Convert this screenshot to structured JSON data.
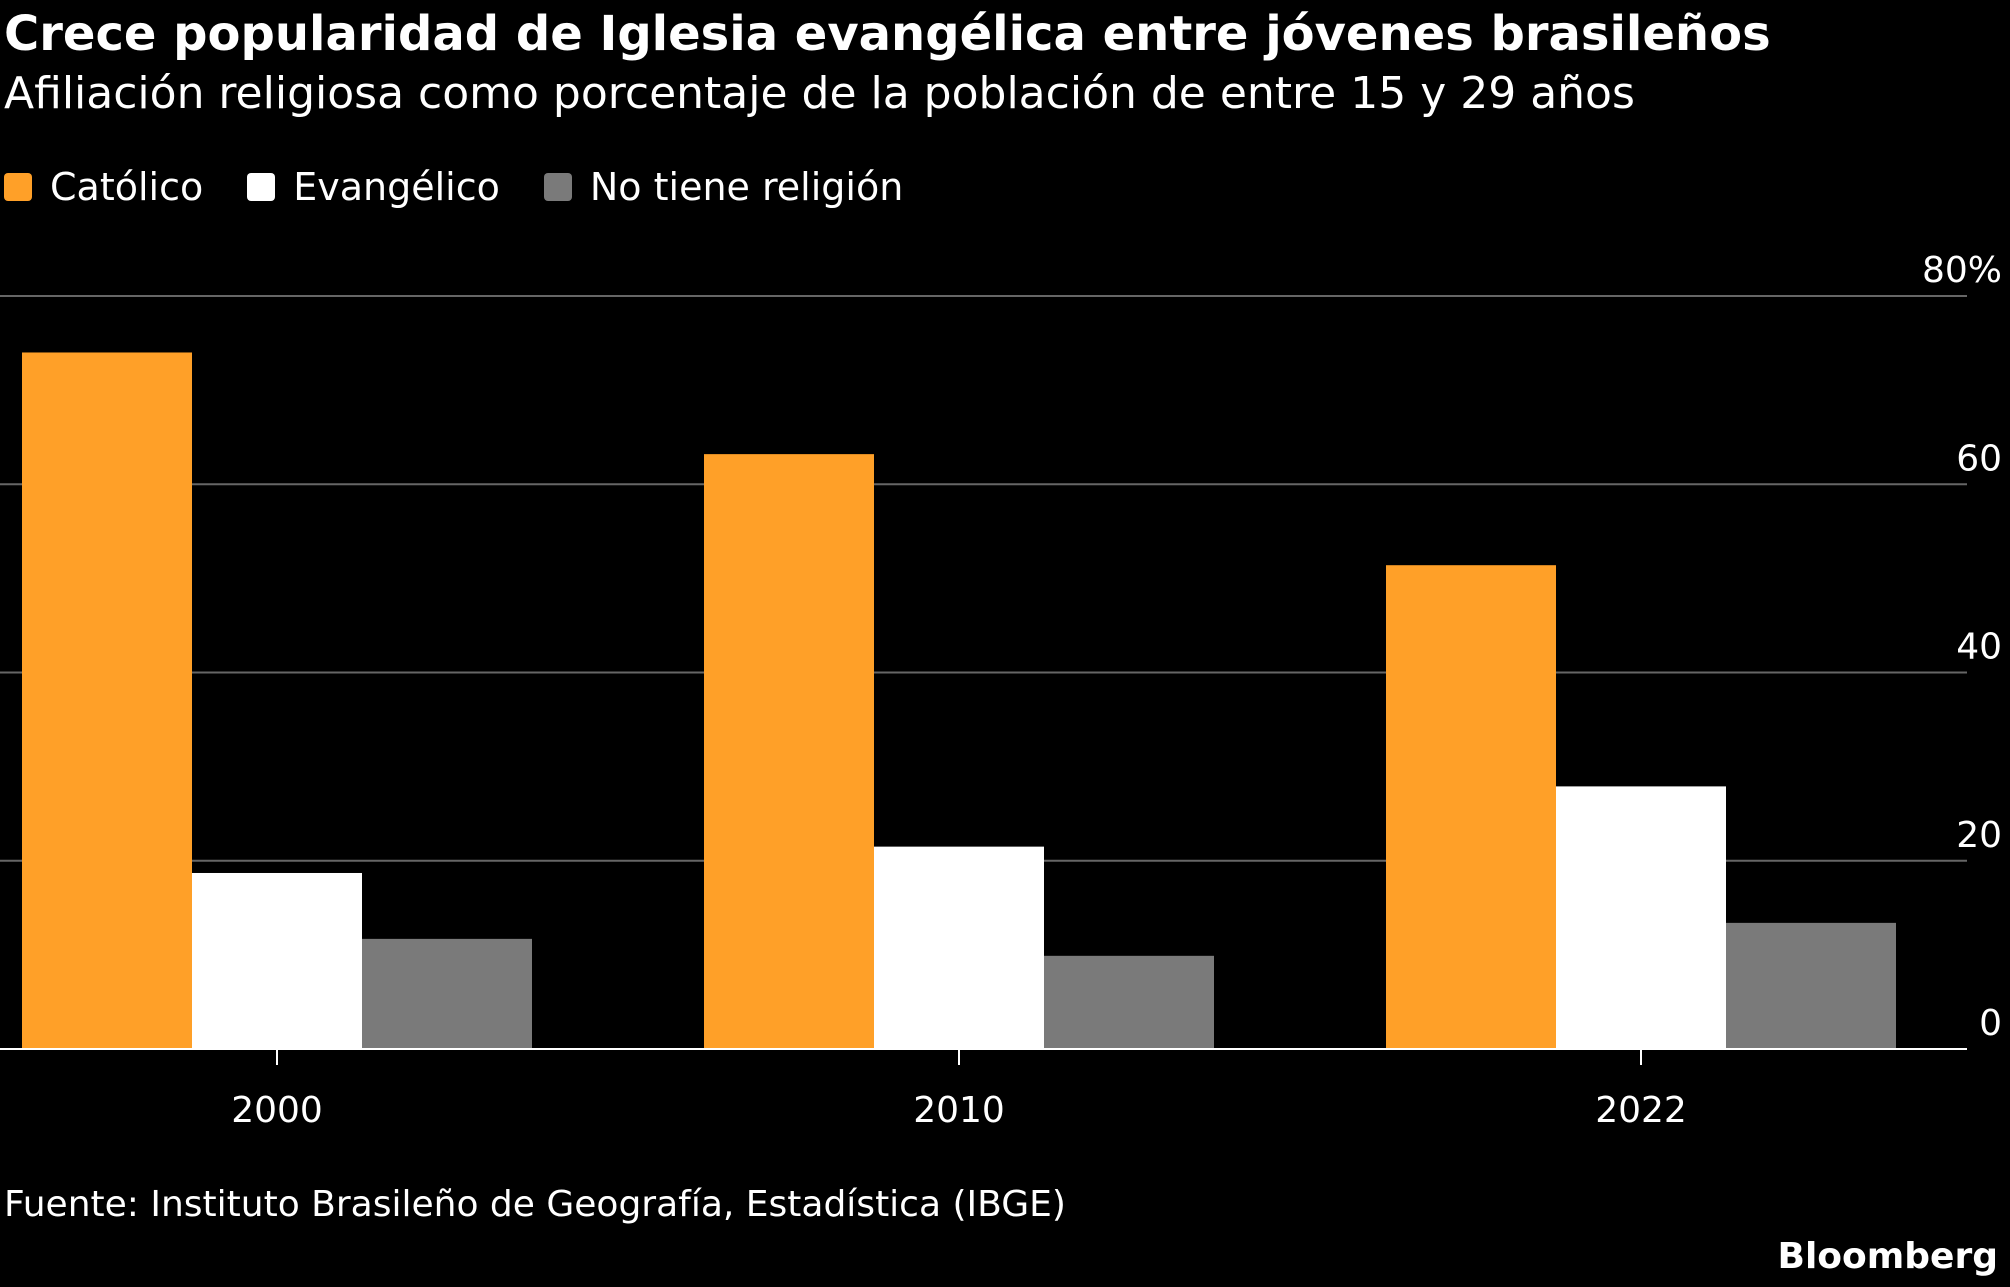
{
  "title": "Crece popularidad de Iglesia evangélica entre jóvenes brasileños",
  "subtitle": "Afiliación religiosa como porcentaje de la población de entre 15 y 29 años",
  "source": "Fuente: Instituto Brasileño de Geografía, Estadística (IBGE)",
  "brand": "Bloomberg",
  "chart_data": {
    "type": "bar",
    "categories": [
      "2000",
      "2010",
      "2022"
    ],
    "series": [
      {
        "name": "Católico",
        "color": "#ffa028",
        "values": [
          74.0,
          63.2,
          51.4
        ]
      },
      {
        "name": "Evangélico",
        "color": "#ffffff",
        "values": [
          18.7,
          21.5,
          27.9
        ]
      },
      {
        "name": "No tiene religión",
        "color": "#7a7a7a",
        "values": [
          11.7,
          9.9,
          13.4
        ]
      }
    ],
    "ylim": [
      0,
      80
    ],
    "yticks": [
      0,
      20,
      40,
      60,
      80
    ],
    "ytick_labels": [
      "0",
      "20",
      "40",
      "60",
      "80%"
    ],
    "y_axis_side": "right",
    "grid": true,
    "legend_placement": "top-left"
  }
}
